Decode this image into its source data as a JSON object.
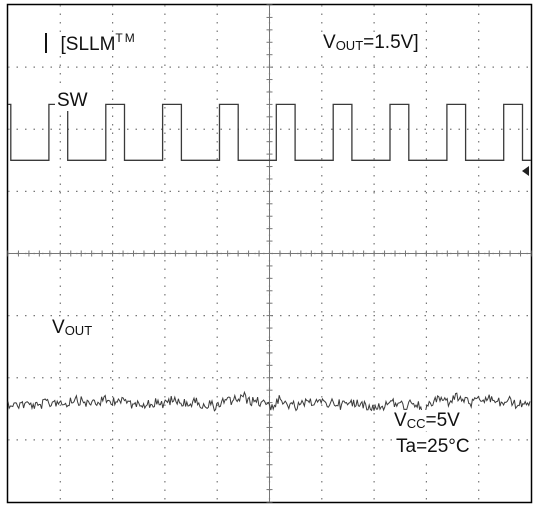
{
  "chart_data": {
    "type": "line",
    "title": "",
    "grid": true,
    "divisions": {
      "x": 10,
      "y": 8
    },
    "series": [
      {
        "name": "SW",
        "waveform": "square",
        "periods_per_screen": 9.2,
        "duty_cycle": 0.33,
        "high_level_div": 2.4,
        "low_level_div": 1.5,
        "color": "#3a3a3a"
      },
      {
        "name": "V",
        "waveform": "dc-with-ripple",
        "mean_level_div": -2.4,
        "ripple_div": 0.12,
        "color": "#3a3a3a"
      }
    ],
    "annotations": {
      "mode_prefix": "[SLLM",
      "mode_suffix": "TM",
      "vout_label_main": "V",
      "vout_label_sub": "OUT",
      "vout_value": "=1.5V]",
      "sw_label": "SW",
      "vout_trace_label_main": "V",
      "vout_trace_label_sub": "OUT",
      "vcc_main": "V",
      "vcc_sub": "CC",
      "vcc_value": "=5V",
      "ta_text": "Ta=25°C"
    }
  },
  "colors": {
    "grid": "#777777",
    "trace": "#3a3a3a",
    "frame": "#000000",
    "background": "#ffffff"
  }
}
